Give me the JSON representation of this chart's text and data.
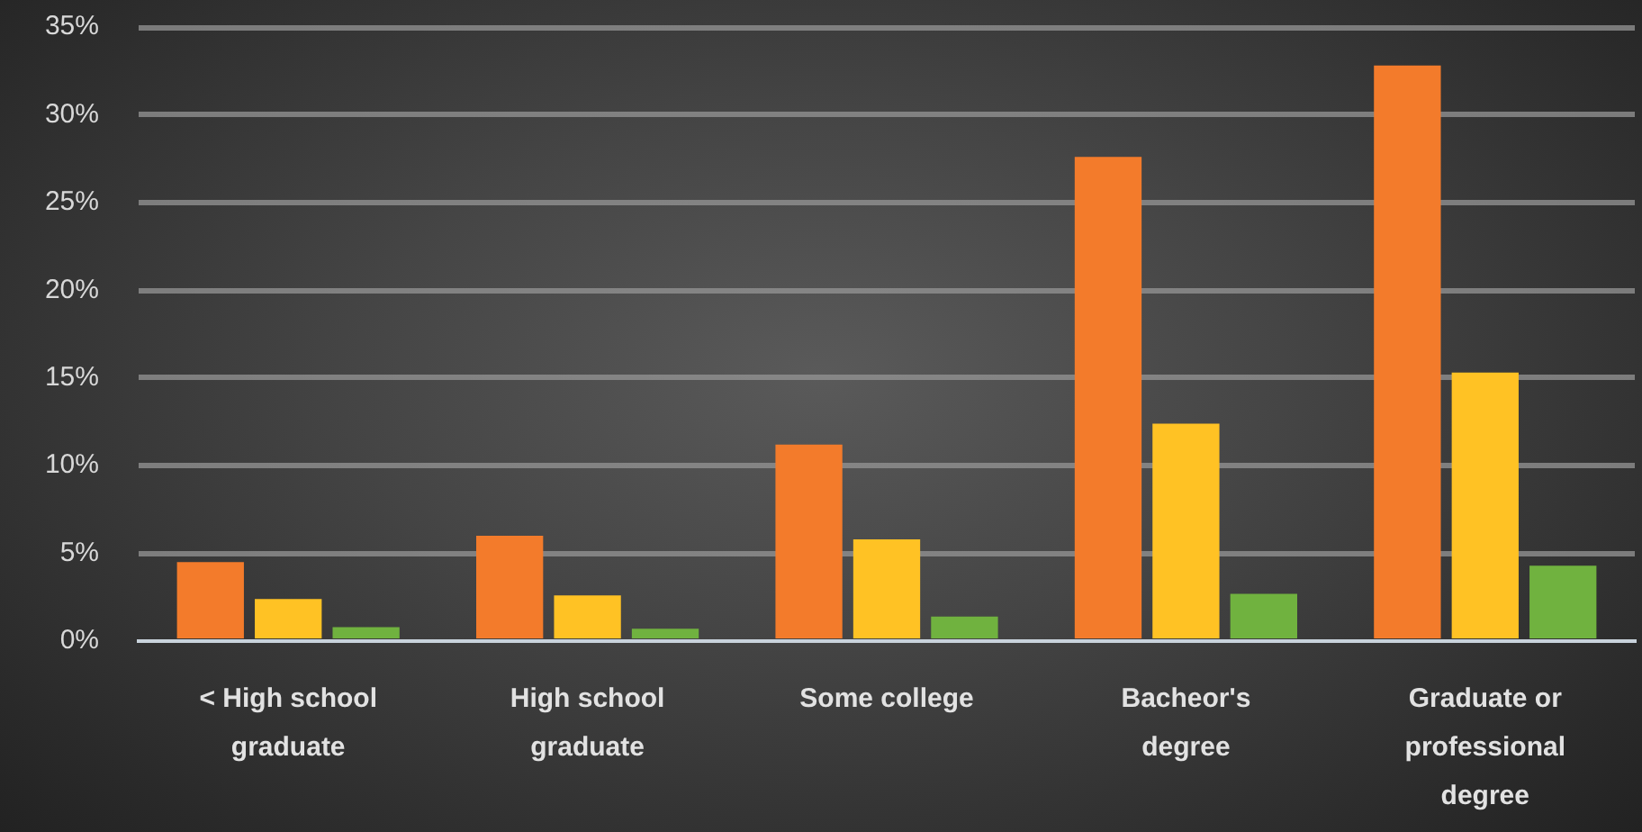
{
  "chart_data": {
    "type": "bar",
    "categories": [
      "< High school graduate",
      "High school graduate",
      "Some college",
      "Bacheor's degree",
      "Graduate or professional degree"
    ],
    "series": [
      {
        "color": "#f37b2b",
        "values": [
          4.5,
          6.0,
          11.2,
          27.6,
          32.8
        ]
      },
      {
        "color": "#ffc224",
        "values": [
          2.4,
          2.6,
          5.8,
          12.4,
          15.3
        ]
      },
      {
        "color": "#70b23f",
        "values": [
          0.8,
          0.7,
          1.4,
          2.7,
          4.3
        ]
      }
    ],
    "ylim": [
      0,
      35
    ],
    "yticks": [
      {
        "value": 0,
        "label": "0%"
      },
      {
        "value": 5,
        "label": "5%"
      },
      {
        "value": 10,
        "label": "10%"
      },
      {
        "value": 15,
        "label": "15%"
      },
      {
        "value": 20,
        "label": "20%"
      },
      {
        "value": 25,
        "label": "25%"
      },
      {
        "value": 30,
        "label": "30%"
      },
      {
        "value": 35,
        "label": "35%"
      }
    ],
    "grid": "y",
    "legend": false
  }
}
